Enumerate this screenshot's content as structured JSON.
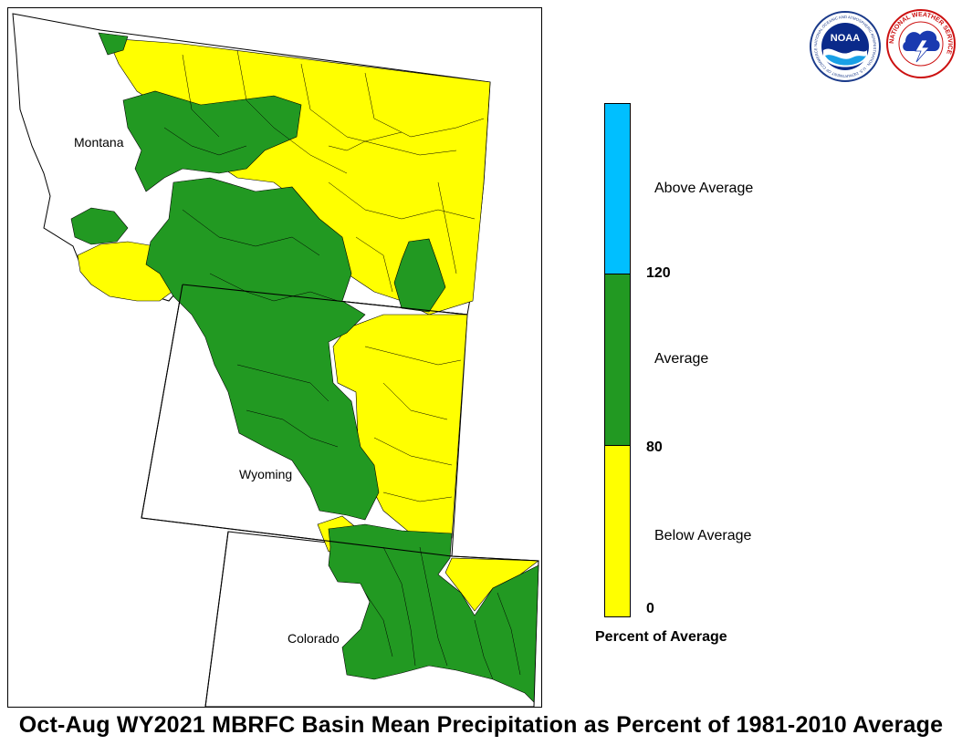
{
  "title": "Oct-Aug WY2021 MBRFC Basin Mean Precipitation as Percent of 1981-2010 Average",
  "states": [
    {
      "name": "Montana"
    },
    {
      "name": "Wyoming"
    },
    {
      "name": "Colorado"
    }
  ],
  "legend": {
    "title": "Percent of Average",
    "categories": [
      {
        "label": "Above Average",
        "color": "#00bfff",
        "range": [
          120,
          null
        ]
      },
      {
        "label": "Average",
        "color": "#229922",
        "range": [
          80,
          120
        ]
      },
      {
        "label": "Below Average",
        "color": "#ffff00",
        "range": [
          0,
          80
        ]
      }
    ],
    "ticks": [
      "120",
      "80",
      "0"
    ]
  },
  "logos": {
    "noaa_text": "NOAA",
    "noaa_ring_text": "NATIONAL OCEANIC AND ATMOSPHERIC ADMINISTRATION · U.S. DEPARTMENT OF COMMERCE",
    "nws_ring_text": "NATIONAL WEATHER SERVICE"
  },
  "colors": {
    "above": "#00bfff",
    "average": "#229922",
    "below": "#ffff00",
    "boundary": "#000000"
  }
}
